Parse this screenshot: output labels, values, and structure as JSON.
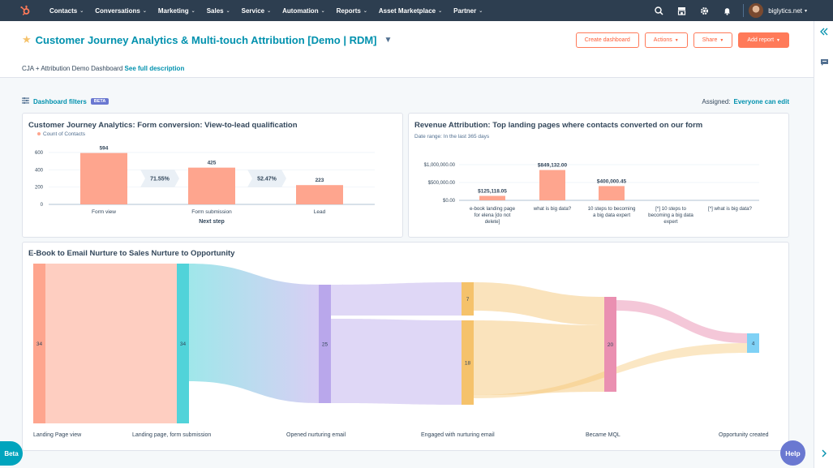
{
  "nav": {
    "items": [
      "Contacts",
      "Conversations",
      "Marketing",
      "Sales",
      "Service",
      "Automation",
      "Reports",
      "Asset Marketplace",
      "Partner"
    ],
    "account": "biglytics.net",
    "colors": {
      "bar": "#2d3e50",
      "accent": "#ff7a59"
    }
  },
  "header": {
    "title": "Customer Journey Analytics & Multi-touch Attribution [Demo | RDM]",
    "description": "CJA + Attribution Demo Dashboard",
    "description_link": "See full description",
    "buttons": {
      "create": "Create dashboard",
      "actions": "Actions",
      "share": "Share",
      "add_report": "Add report"
    }
  },
  "filters": {
    "label": "Dashboard filters",
    "badge": "BETA",
    "assigned_label": "Assigned:",
    "assigned_value": "Everyone can edit"
  },
  "report1": {
    "title": "Customer Journey Analytics: Form conversion: View-to-lead qualification",
    "legend": "Count of Contacts",
    "xlabel": "Next step"
  },
  "report2": {
    "title": "Revenue Attribution: Top landing pages where contacts converted on our form",
    "subtitle": "Date range: In the last 365 days"
  },
  "report3": {
    "title": "E-Book to Email Nurture to Sales Nurture to Opportunity"
  },
  "chart_data": [
    {
      "type": "bar",
      "title": "Customer Journey Analytics: Form conversion: View-to-lead qualification",
      "categories": [
        "Form view",
        "Form submission",
        "Lead"
      ],
      "values": [
        594,
        425,
        223
      ],
      "series": [
        {
          "name": "Count of Contacts",
          "values": [
            594,
            425,
            223
          ]
        }
      ],
      "conversion_rates": [
        "71.55%",
        "52.47%"
      ],
      "yticks": [
        "600",
        "400",
        "200",
        "0"
      ],
      "ylim": [
        0,
        600
      ],
      "xlabel": "Next step",
      "color": "#fea58e"
    },
    {
      "type": "bar",
      "title": "Revenue Attribution: Top landing pages where contacts converted on our form",
      "categories": [
        [
          "e-book landing page",
          "for elena [do not",
          "delete]"
        ],
        [
          "what is big data?"
        ],
        [
          "10 steps to becoming",
          "a big data expert"
        ],
        [
          "[*] 10 steps to",
          "becoming a big data",
          "expert"
        ],
        [
          "[*] what is big data?"
        ]
      ],
      "values": [
        125118.05,
        849132.0,
        400000.45,
        0,
        0
      ],
      "value_labels": [
        "$125,118.05",
        "$849,132.00",
        "$400,000.45",
        "",
        ""
      ],
      "yticks": [
        "$1,000,000.00",
        "$500,000.00",
        "$0.00"
      ],
      "ylim": [
        0,
        1000000
      ],
      "color": "#fea58e"
    },
    {
      "type": "sankey",
      "title": "E-Book to Email Nurture to Sales Nurture to Opportunity",
      "stages": [
        {
          "label": "Landing Page view",
          "nodes": [
            {
              "value": "34",
              "color": "#fea58e"
            }
          ]
        },
        {
          "label": "Landing page, form submission",
          "nodes": [
            {
              "value": "34",
              "color": "#51d3d9"
            }
          ]
        },
        {
          "label": "Opened nurturing email",
          "nodes": [
            {
              "value": "25",
              "color": "#b9a7eb"
            }
          ]
        },
        {
          "label": "Engaged with nurturing email",
          "nodes": [
            {
              "value": "7",
              "color": "#f5c26b"
            },
            {
              "value": "18",
              "color": "#f5c26b"
            }
          ]
        },
        {
          "label": "Became MQL",
          "nodes": [
            {
              "value": "20",
              "color": "#ea90b1"
            }
          ]
        },
        {
          "label": "Opportunity created",
          "nodes": [
            {
              "value": "4",
              "color": "#7fd1f5"
            }
          ]
        }
      ]
    }
  ],
  "floating": {
    "beta": "Beta",
    "help": "Help"
  }
}
